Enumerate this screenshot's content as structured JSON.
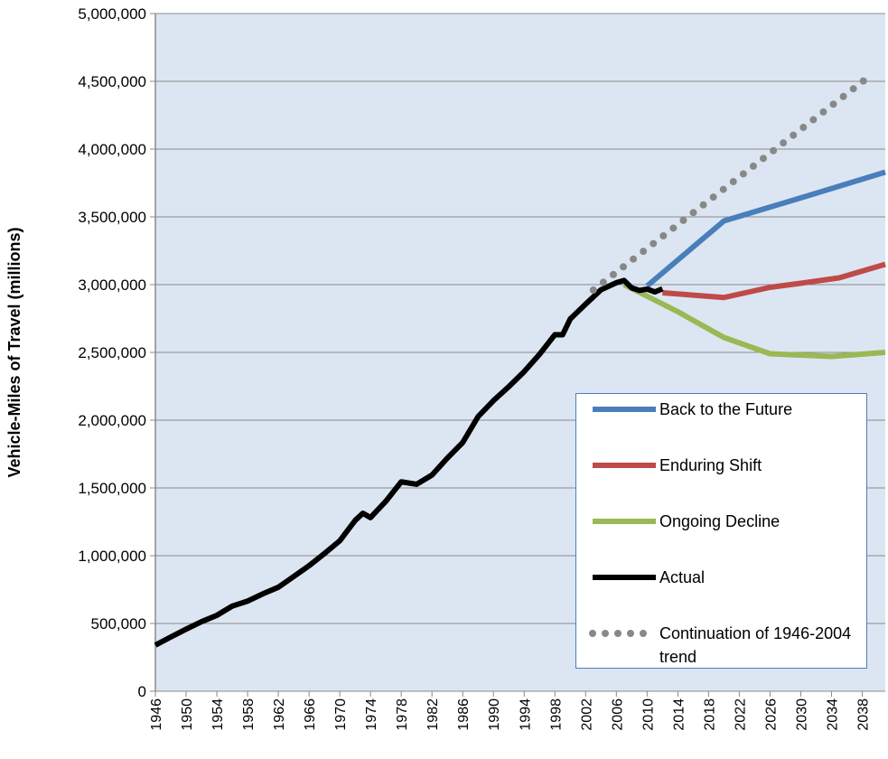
{
  "chart_data": {
    "type": "line",
    "y_label": "Vehicle-Miles of Travel (millions)",
    "xlim": [
      1946,
      2041
    ],
    "xticks": [
      1946,
      1950,
      1954,
      1958,
      1962,
      1966,
      1970,
      1974,
      1978,
      1982,
      1986,
      1990,
      1994,
      1998,
      2002,
      2006,
      2010,
      2014,
      2018,
      2022,
      2026,
      2030,
      2034,
      2038
    ],
    "ylim": [
      0,
      5000000
    ],
    "yticks": [
      0,
      {
        "value": 500000,
        "label": "500,000"
      },
      {
        "value": 1000000,
        "label": "1,000,000"
      },
      {
        "value": 1500000,
        "label": "1,500,000"
      },
      {
        "value": 2000000,
        "label": "2,000,000"
      },
      {
        "value": 2500000,
        "label": "2,500,000"
      },
      {
        "value": 3000000,
        "label": "3,000,000"
      },
      {
        "value": 3500000,
        "label": "3,500,000"
      },
      {
        "value": 4000000,
        "label": "4,000,000"
      },
      {
        "value": 4500000,
        "label": "4,500,000"
      },
      {
        "value": 5000000,
        "label": "5,000,000"
      }
    ],
    "grid": true,
    "legend": "lower right",
    "series": [
      {
        "name": "Back to the Future",
        "color": "#4a7ebb",
        "style": "solid",
        "x": [
          2010,
          2020,
          2030,
          2041
        ],
        "values": [
          2990000,
          3470000,
          3640000,
          3830000
        ]
      },
      {
        "name": "Enduring Shift",
        "color": "#be4b48",
        "style": "solid",
        "x": [
          2012,
          2020,
          2026,
          2030,
          2035,
          2041
        ],
        "values": [
          2940000,
          2905000,
          2980000,
          3010000,
          3050000,
          3150000
        ]
      },
      {
        "name": "Ongoing Decline",
        "color": "#98b954",
        "style": "solid",
        "x": [
          2007,
          2014,
          2020,
          2026,
          2030,
          2034,
          2041
        ],
        "values": [
          3000000,
          2800000,
          2610000,
          2490000,
          2480000,
          2470000,
          2500000
        ]
      },
      {
        "name": "Actual",
        "color": "#000000",
        "style": "solid",
        "x": [
          1946,
          1948,
          1950,
          1952,
          1954,
          1956,
          1958,
          1960,
          1962,
          1964,
          1966,
          1968,
          1970,
          1972,
          1973,
          1974,
          1976,
          1978,
          1980,
          1982,
          1984,
          1986,
          1988,
          1990,
          1992,
          1994,
          1996,
          1998,
          1999,
          2000,
          2002,
          2004,
          2006,
          2007,
          2008,
          2009,
          2010,
          2011,
          2012
        ],
        "values": [
          340000,
          400000,
          458000,
          513000,
          560000,
          628000,
          665000,
          719000,
          767000,
          846000,
          926000,
          1016000,
          1110000,
          1260000,
          1313000,
          1281000,
          1402000,
          1545000,
          1527000,
          1595000,
          1720000,
          1835000,
          2026000,
          2144000,
          2247000,
          2358000,
          2486000,
          2631000,
          2630000,
          2747000,
          2856000,
          2962000,
          3014000,
          3031000,
          2976000,
          2957000,
          2967000,
          2946000,
          2969000
        ]
      },
      {
        "name": "Continuation of 1946-2004 trend",
        "color": "#888888",
        "style": "dotted",
        "x": [
          2003,
          2039
        ],
        "values": [
          2960000,
          4540000
        ]
      }
    ]
  }
}
